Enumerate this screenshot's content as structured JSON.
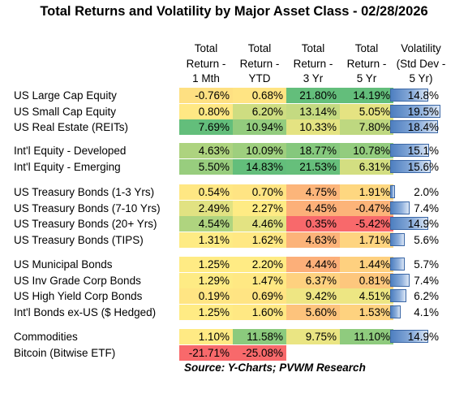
{
  "chart_data": {
    "type": "table",
    "title": "Total Returns and Volatility by Major Asset Class - 02/28/2026",
    "columns": [
      [
        "Total",
        "Return -",
        "1 Mth"
      ],
      [
        "Total",
        "Return -",
        "YTD"
      ],
      [
        "Total",
        "Return -",
        "3 Yr"
      ],
      [
        "Total",
        "Return -",
        "5 Yr"
      ],
      [
        "Volatility",
        "(Std Dev -",
        "5 Yr)"
      ]
    ],
    "groups": [
      [
        {
          "label": "US Large Cap Equity",
          "values": [
            "-0.76%",
            "0.68%",
            "21.80%",
            "14.19%"
          ],
          "nums": [
            -0.76,
            0.68,
            21.8,
            14.19
          ],
          "vol": "14.8%",
          "vol_num": 14.8
        },
        {
          "label": "US Small Cap Equity",
          "values": [
            "0.80%",
            "6.20%",
            "13.14%",
            "5.05%"
          ],
          "nums": [
            0.8,
            6.2,
            13.14,
            5.05
          ],
          "vol": "19.5%",
          "vol_num": 19.5
        },
        {
          "label": "US Real Estate (REITs)",
          "values": [
            "7.69%",
            "10.94%",
            "10.33%",
            "7.80%"
          ],
          "nums": [
            7.69,
            10.94,
            10.33,
            7.8
          ],
          "vol": "18.4%",
          "vol_num": 18.4
        }
      ],
      [
        {
          "label": "Int'l Equity - Developed",
          "values": [
            "4.63%",
            "10.09%",
            "18.77%",
            "10.78%"
          ],
          "nums": [
            4.63,
            10.09,
            18.77,
            10.78
          ],
          "vol": "15.1%",
          "vol_num": 15.1
        },
        {
          "label": "Int'l Equity - Emerging",
          "values": [
            "5.50%",
            "14.83%",
            "21.53%",
            "6.31%"
          ],
          "nums": [
            5.5,
            14.83,
            21.53,
            6.31
          ],
          "vol": "15.6%",
          "vol_num": 15.6
        }
      ],
      [
        {
          "label": "US Treasury Bonds (1-3 Yrs)",
          "values": [
            "0.54%",
            "0.70%",
            "4.75%",
            "1.91%"
          ],
          "nums": [
            0.54,
            0.7,
            4.75,
            1.91
          ],
          "vol": "2.0%",
          "vol_num": 2.0
        },
        {
          "label": "US Treasury Bonds (7-10 Yrs)",
          "values": [
            "2.49%",
            "2.27%",
            "4.45%",
            "-0.47%"
          ],
          "nums": [
            2.49,
            2.27,
            4.45,
            -0.47
          ],
          "vol": "7.4%",
          "vol_num": 7.4
        },
        {
          "label": "US Treasury Bonds (20+ Yrs)",
          "values": [
            "4.54%",
            "4.46%",
            "0.35%",
            "-5.42%"
          ],
          "nums": [
            4.54,
            4.46,
            0.35,
            -5.42
          ],
          "vol": "14.9%",
          "vol_num": 14.9
        },
        {
          "label": "US Treasury Bonds (TIPS)",
          "values": [
            "1.31%",
            "1.62%",
            "4.63%",
            "1.71%"
          ],
          "nums": [
            1.31,
            1.62,
            4.63,
            1.71
          ],
          "vol": "5.6%",
          "vol_num": 5.6
        }
      ],
      [
        {
          "label": "US Municipal Bonds",
          "values": [
            "1.25%",
            "2.20%",
            "4.44%",
            "1.44%"
          ],
          "nums": [
            1.25,
            2.2,
            4.44,
            1.44
          ],
          "vol": "5.7%",
          "vol_num": 5.7
        },
        {
          "label": "US Inv Grade Corp Bonds",
          "values": [
            "1.29%",
            "1.47%",
            "6.37%",
            "0.81%"
          ],
          "nums": [
            1.29,
            1.47,
            6.37,
            0.81
          ],
          "vol": "7.4%",
          "vol_num": 7.4
        },
        {
          "label": "US High Yield Corp Bonds",
          "values": [
            "0.19%",
            "0.69%",
            "9.42%",
            "4.51%"
          ],
          "nums": [
            0.19,
            0.69,
            9.42,
            4.51
          ],
          "vol": "6.2%",
          "vol_num": 6.2
        },
        {
          "label": "Int'l Bonds ex-US ($ Hedged)",
          "values": [
            "1.25%",
            "1.60%",
            "5.60%",
            "1.53%"
          ],
          "nums": [
            1.25,
            1.6,
            5.6,
            1.53
          ],
          "vol": "4.1%",
          "vol_num": 4.1
        }
      ],
      [
        {
          "label": "Commodities",
          "values": [
            "1.10%",
            "11.58%",
            "9.75%",
            "11.10%"
          ],
          "nums": [
            1.1,
            11.58,
            9.75,
            11.1
          ],
          "vol": "14.9%",
          "vol_num": 14.9
        },
        {
          "label": "Bitcoin (Bitwise ETF)",
          "values": [
            "-21.71%",
            "-25.08%",
            "",
            ""
          ],
          "nums": [
            -21.71,
            -25.08,
            null,
            null
          ],
          "vol": "",
          "vol_num": null
        }
      ]
    ],
    "vol_max": 19.5,
    "colors": {
      "low": "#f8696b",
      "mid": "#ffeb84",
      "high": "#63be7b",
      "bar": "#4e7fc0"
    },
    "source": "Source:  Y-Charts; PVWM Research"
  }
}
